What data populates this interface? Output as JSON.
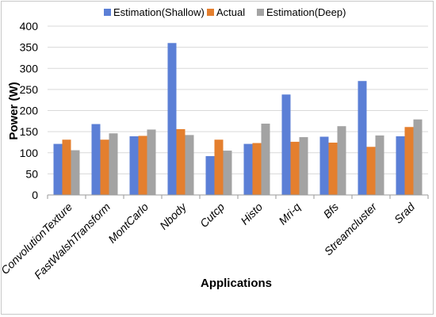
{
  "chart_data": {
    "type": "bar",
    "title": "",
    "xlabel": "Applications",
    "ylabel": "Power (W)",
    "ylim": [
      0,
      400
    ],
    "yticks": [
      0,
      50,
      100,
      150,
      200,
      250,
      300,
      350,
      400
    ],
    "grid": true,
    "legend_position": "top",
    "categories": [
      "ConvolutionTexture",
      "FastWalshTransform",
      "MontCarlo",
      "Nbody",
      "Cutcp",
      "Histo",
      "Mri-q",
      "Bfs",
      "Streamcluster",
      "Srad"
    ],
    "series": [
      {
        "name": "Estimation(Shallow)",
        "color": "#5b7fd6",
        "values": [
          121,
          168,
          139,
          360,
          92,
          121,
          238,
          138,
          270,
          139
        ]
      },
      {
        "name": "Actual",
        "color": "#e47f2e",
        "values": [
          131,
          131,
          140,
          156,
          131,
          123,
          126,
          124,
          114,
          161
        ]
      },
      {
        "name": "Estimation(Deep)",
        "color": "#a3a3a3",
        "values": [
          106,
          146,
          155,
          142,
          105,
          169,
          137,
          163,
          141,
          179
        ]
      }
    ]
  }
}
